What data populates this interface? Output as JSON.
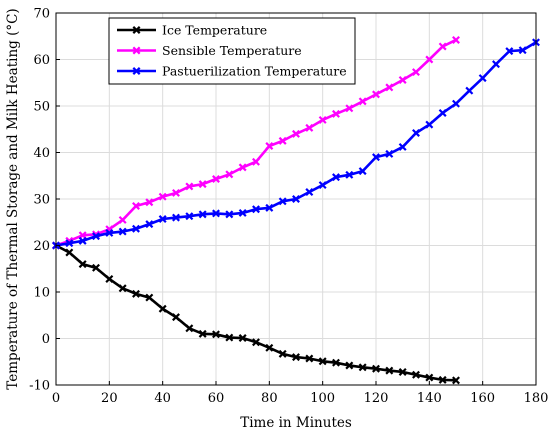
{
  "chart_data": {
    "type": "line",
    "title": "",
    "xlabel": "Time in Minutes",
    "ylabel": "Temperature of Thermal Storage and Milk Heating (°C)",
    "xlim": [
      0,
      180
    ],
    "ylim": [
      -10,
      70
    ],
    "xticks": [
      0,
      20,
      40,
      60,
      80,
      100,
      120,
      140,
      160,
      180
    ],
    "yticks": [
      -10,
      0,
      10,
      20,
      30,
      40,
      50,
      60,
      70
    ],
    "grid": true,
    "legend_position": "top-left",
    "series": [
      {
        "name": "Ice Temperature",
        "color": "#000000",
        "marker": "x",
        "x": [
          0,
          5,
          10,
          15,
          20,
          25,
          30,
          35,
          40,
          45,
          50,
          55,
          60,
          65,
          70,
          75,
          80,
          85,
          90,
          95,
          100,
          105,
          110,
          115,
          120,
          125,
          130,
          135,
          140,
          145,
          150
        ],
        "y": [
          20,
          18.5,
          16,
          15.2,
          12.8,
          10.8,
          9.6,
          8.8,
          6.4,
          4.6,
          2.2,
          1,
          0.9,
          0.2,
          0.1,
          -0.8,
          -2,
          -3.3,
          -4,
          -4.3,
          -4.9,
          -5.2,
          -5.8,
          -6.2,
          -6.5,
          -6.9,
          -7.2,
          -7.8,
          -8.4,
          -8.9,
          -9
        ]
      },
      {
        "name": "Sensible Temperature",
        "color": "#ff00ff",
        "marker": "x",
        "x": [
          0,
          5,
          10,
          15,
          20,
          25,
          30,
          35,
          40,
          45,
          50,
          55,
          60,
          65,
          70,
          75,
          80,
          85,
          90,
          95,
          100,
          105,
          110,
          115,
          120,
          125,
          130,
          135,
          140,
          145,
          150
        ],
        "y": [
          20,
          21,
          22.2,
          22.4,
          23.5,
          25.5,
          28.5,
          29.3,
          30.5,
          31.3,
          32.7,
          33.2,
          34.3,
          35.3,
          36.8,
          38,
          41.4,
          42.5,
          44,
          45.3,
          47,
          48.3,
          49.5,
          51,
          52.5,
          54,
          55.6,
          57.3,
          60,
          62.8,
          64.2
        ]
      },
      {
        "name": "Pastuerilization Temperature",
        "color": "#0000ff",
        "marker": "x",
        "x": [
          0,
          5,
          10,
          15,
          20,
          25,
          30,
          35,
          40,
          45,
          50,
          55,
          60,
          65,
          70,
          75,
          80,
          85,
          90,
          95,
          100,
          105,
          110,
          115,
          120,
          125,
          130,
          135,
          140,
          145,
          150,
          155,
          160,
          165,
          170,
          175,
          180
        ],
        "y": [
          20,
          20.5,
          21,
          22,
          22.7,
          23,
          23.6,
          24.6,
          25.7,
          26,
          26.3,
          26.7,
          26.9,
          26.7,
          27,
          27.8,
          28.1,
          29.5,
          30,
          31.5,
          33,
          34.7,
          35.2,
          36,
          39,
          39.7,
          41.2,
          44.2,
          46,
          48.5,
          50.5,
          53.3,
          56,
          59,
          61.8,
          62,
          63.7
        ]
      }
    ]
  }
}
